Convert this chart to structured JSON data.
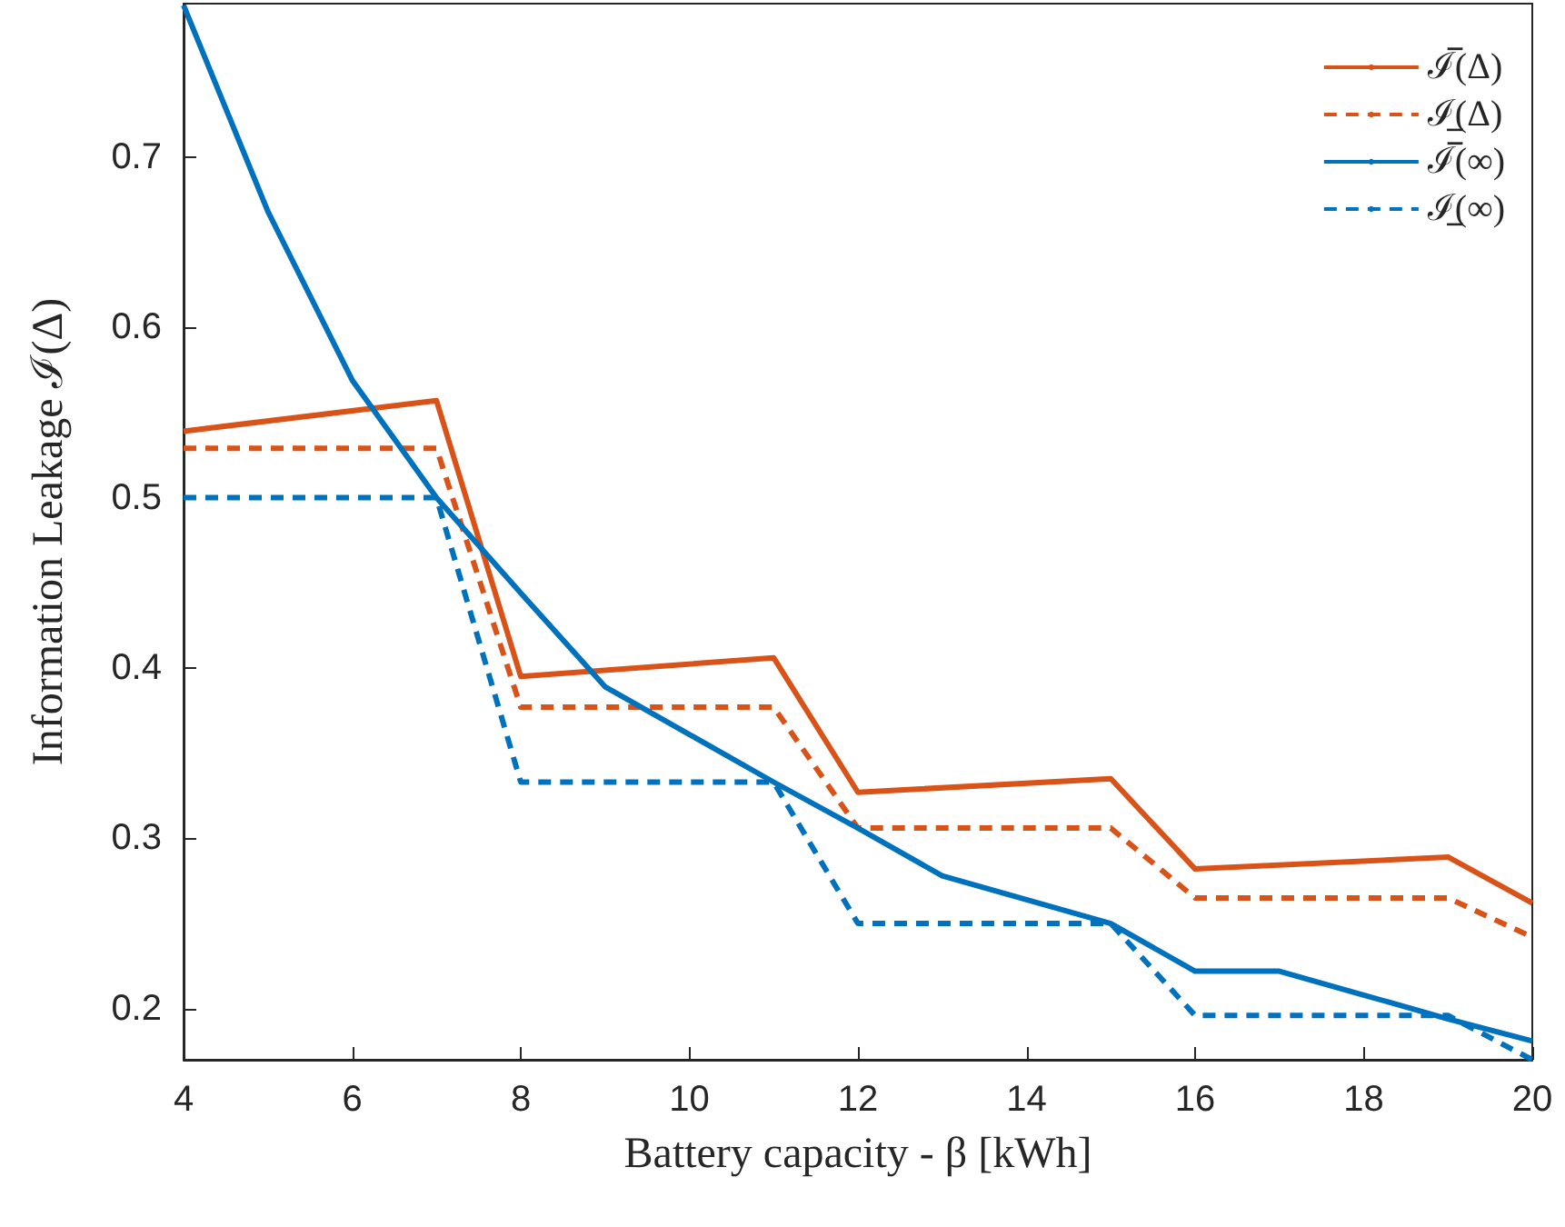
{
  "chart_data": {
    "type": "line",
    "xlabel": "Battery capacity - β [kWh]",
    "ylabel": "Information Leakage ℐ(Δ)",
    "xlim": [
      4,
      20
    ],
    "xticks": [
      4,
      6,
      8,
      10,
      12,
      14,
      16,
      18,
      20
    ],
    "ylim": [
      0.17,
      0.79
    ],
    "yticks": [
      0.2,
      0.3,
      0.4,
      0.5,
      0.6,
      0.7
    ],
    "grid": false,
    "legend": "top right",
    "marker": "none",
    "series": [
      {
        "name": "ℐ̅(Δ)",
        "color": "#d95319",
        "line_style": "solid",
        "x": [
          4,
          7,
          8,
          11,
          12,
          15,
          16,
          19,
          20
        ],
        "values": [
          0.539,
          0.557,
          0.395,
          0.406,
          0.327,
          0.335,
          0.282,
          0.289,
          0.262
        ]
      },
      {
        "name": "ℐ̲(Δ)",
        "color": "#d95319",
        "line_style": "dashed",
        "x": [
          4,
          7,
          8,
          11,
          12,
          15,
          16,
          19,
          20
        ],
        "values": [
          0.529,
          0.529,
          0.377,
          0.377,
          0.306,
          0.306,
          0.265,
          0.265,
          0.242
        ]
      },
      {
        "name": "ℐ̅(∞)",
        "color": "#0072bd",
        "line_style": "solid",
        "x": [
          4,
          5,
          6,
          7,
          8,
          9,
          10,
          11,
          12,
          13,
          14,
          15,
          16,
          17,
          18,
          19,
          20
        ],
        "values": [
          0.789,
          0.668,
          0.569,
          0.5,
          0.444,
          0.389,
          0.361,
          0.333,
          0.306,
          0.278,
          0.264,
          0.25,
          0.222,
          0.222,
          0.208,
          0.194,
          0.181
        ]
      },
      {
        "name": "ℐ̲(∞)",
        "color": "#0072bd",
        "line_style": "dashed",
        "x": [
          4,
          7,
          8,
          11,
          12,
          15,
          16,
          19,
          20
        ],
        "values": [
          0.5,
          0.5,
          0.333,
          0.333,
          0.25,
          0.25,
          0.196,
          0.196,
          0.17
        ]
      }
    ]
  }
}
